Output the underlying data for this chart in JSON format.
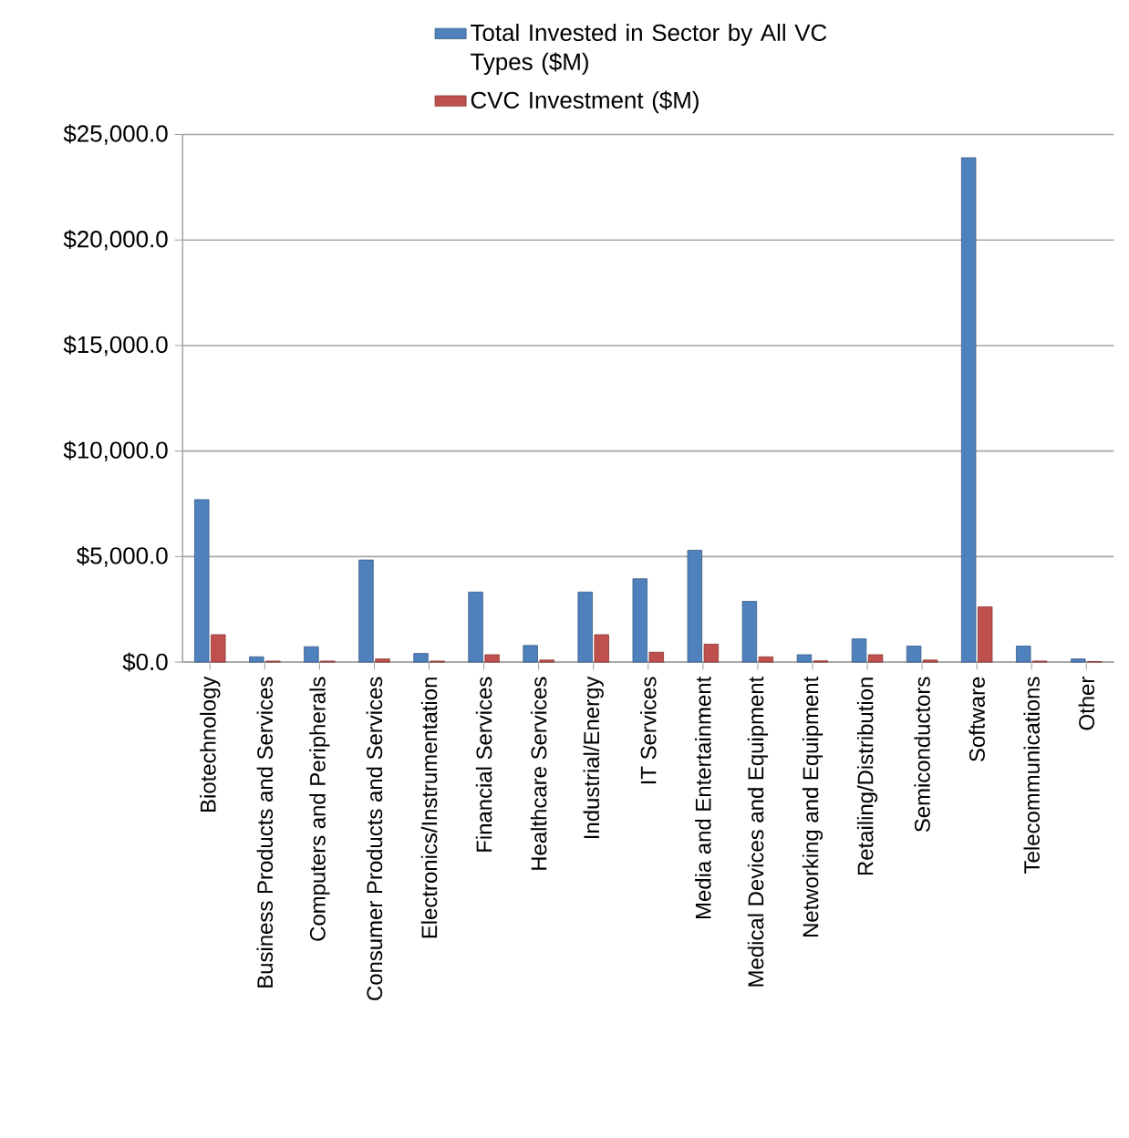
{
  "chart_data": {
    "type": "bar",
    "categories": [
      "Biotechnology",
      "Business Products and Services",
      "Computers and Peripherals",
      "Consumer Products and Services",
      "Electronics/Instrumentation",
      "Financial Services",
      "Healthcare Services",
      "Industrial/Energy",
      "IT Services",
      "Media and Entertainment",
      "Medical Devices and Equipment",
      "Networking and Equipment",
      "Retailing/Distribution",
      "Semiconductors",
      "Software",
      "Telecommunications",
      "Other"
    ],
    "series": [
      {
        "name": "Total Invested in Sector by All VC Types ($M)",
        "color": "#4f81bd",
        "values": [
          7700,
          250,
          730,
          4840,
          410,
          3320,
          790,
          3320,
          3950,
          5300,
          2880,
          350,
          1100,
          760,
          23900,
          760,
          150
        ]
      },
      {
        "name": "CVC Investment ($M)",
        "color": "#c0504d",
        "values": [
          1300,
          50,
          50,
          150,
          50,
          350,
          100,
          1300,
          470,
          850,
          250,
          60,
          350,
          100,
          2620,
          50,
          30
        ]
      }
    ],
    "ylim": [
      0,
      25000
    ],
    "yticks": [
      {
        "value": 0,
        "label": "$0.0"
      },
      {
        "value": 5000,
        "label": "$5,000.0"
      },
      {
        "value": 10000,
        "label": "$10,000.0"
      },
      {
        "value": 15000,
        "label": "$15,000.0"
      },
      {
        "value": 20000,
        "label": "$20,000.0"
      },
      {
        "value": 25000,
        "label": "$25,000.0"
      }
    ],
    "grid": "y",
    "legend": "top"
  }
}
